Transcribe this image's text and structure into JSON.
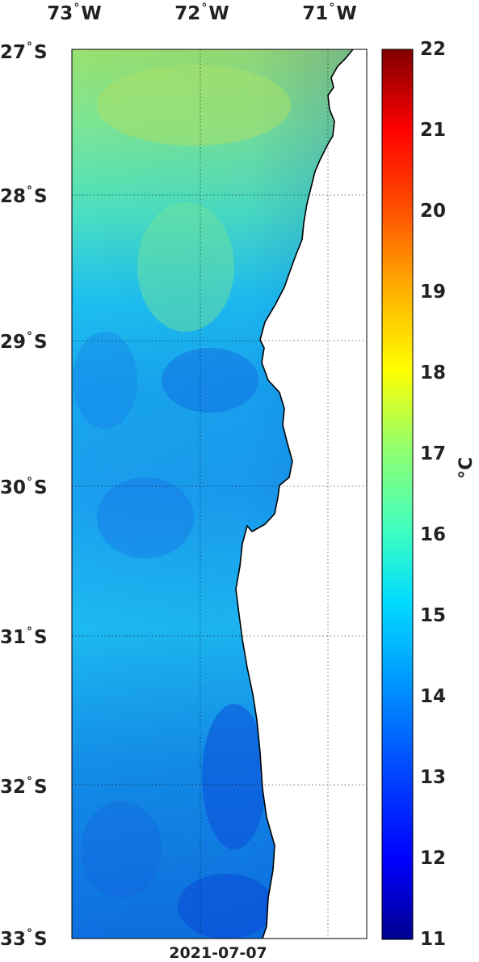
{
  "map": {
    "lon_labels": [
      {
        "deg": "73",
        "hemi": "W"
      },
      {
        "deg": "72",
        "hemi": "W"
      },
      {
        "deg": "71",
        "hemi": "W"
      }
    ],
    "lat_labels": [
      {
        "deg": "27",
        "hemi": "S"
      },
      {
        "deg": "28",
        "hemi": "S"
      },
      {
        "deg": "29",
        "hemi": "S"
      },
      {
        "deg": "30",
        "hemi": "S"
      },
      {
        "deg": "31",
        "hemi": "S"
      },
      {
        "deg": "32",
        "hemi": "S"
      },
      {
        "deg": "33",
        "hemi": "S"
      }
    ],
    "degree_symbol": "°",
    "date": "2021-07-07",
    "colorbar": {
      "ticks": [
        "22",
        "21",
        "20",
        "19",
        "18",
        "17",
        "16",
        "15",
        "14",
        "13",
        "12",
        "11"
      ],
      "unit": "°C",
      "range": [
        11,
        22
      ]
    }
  }
}
